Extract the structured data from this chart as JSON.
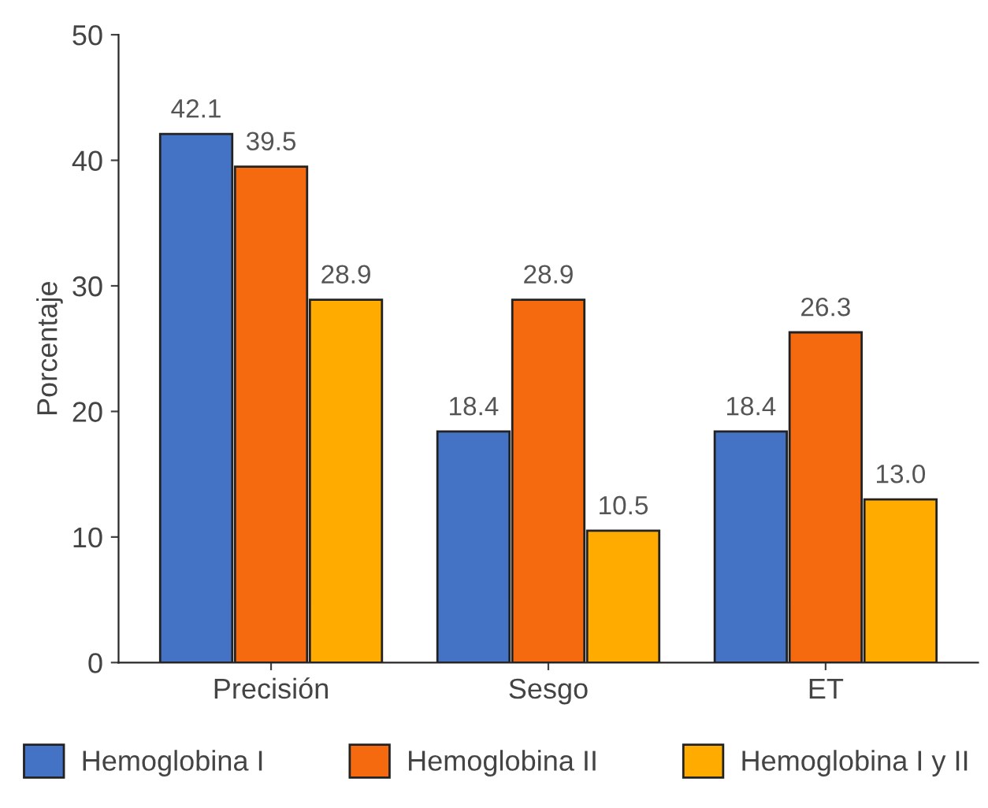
{
  "chart_data": {
    "type": "bar",
    "ylabel": "Porcentaje",
    "categories": [
      "Precisión",
      "Sesgo",
      "ET"
    ],
    "series": [
      {
        "name": "Hemoglobina I",
        "color": "#4472c4",
        "values": [
          42.1,
          18.4,
          18.4
        ]
      },
      {
        "name": "Hemoglobina II",
        "color": "#f5690f",
        "values": [
          39.5,
          28.9,
          26.3
        ]
      },
      {
        "name": "Hemoglobina I y II",
        "color": "#ffab00",
        "values": [
          28.9,
          10.5,
          13.0
        ]
      }
    ],
    "ylim": [
      0,
      50
    ],
    "yticks": [
      0,
      10,
      20,
      30,
      40,
      50
    ],
    "grid": false,
    "legend": "bottom",
    "value_labels": [
      [
        "42.1",
        "18.4",
        "18.4"
      ],
      [
        "39.5",
        "28.9",
        "26.3"
      ],
      [
        "28.9",
        "10.5",
        "13.0"
      ]
    ]
  }
}
